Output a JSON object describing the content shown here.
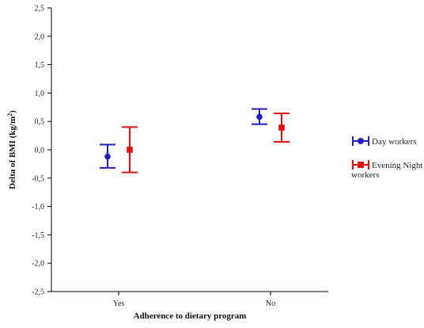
{
  "chart_data": {
    "type": "scatter",
    "categories": [
      "Yes",
      "No"
    ],
    "xlabel": "Adherence to dietary program",
    "ylabel_main": "Delta of BMI (kg/m",
    "ylabel_sup": "2",
    "ylabel_close": ")",
    "ylim": [
      -2.5,
      2.5
    ],
    "yticks": [
      -2.5,
      -2.0,
      -1.5,
      -1.0,
      -0.5,
      0.0,
      0.5,
      1.0,
      1.5,
      2.0,
      2.5
    ],
    "ytick_labels": [
      "-2,5",
      "-2,0",
      "-1,5",
      "-1,0",
      "-0,5",
      "0,0",
      "0,5",
      "1,0",
      "1,5",
      "2,0",
      "2,5"
    ],
    "grid": false,
    "legend_position": "right",
    "series": [
      {
        "name": "Day workers",
        "color": "#1f1fbf",
        "marker": "circle",
        "values": [
          -0.12,
          0.58
        ],
        "lower": [
          -0.32,
          0.45
        ],
        "upper": [
          0.09,
          0.72
        ]
      },
      {
        "name": "Evening Night workers",
        "legend_lines": [
          "Evening Night",
          "workers"
        ],
        "color": "#e01010",
        "marker": "square",
        "values": [
          0.0,
          0.39
        ],
        "lower": [
          -0.4,
          0.14
        ],
        "upper": [
          0.4,
          0.64
        ]
      }
    ]
  }
}
